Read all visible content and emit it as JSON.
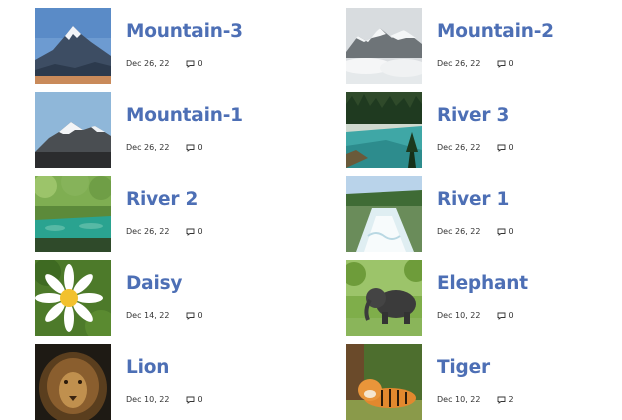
{
  "posts": [
    {
      "title": "Mountain-3",
      "date": "Dec 26, 22",
      "comments": "0",
      "thumb_icon": "mountain-peak-icon"
    },
    {
      "title": "Mountain-2",
      "date": "Dec 26, 22",
      "comments": "0",
      "thumb_icon": "misty-mountain-icon"
    },
    {
      "title": "Mountain-1",
      "date": "Dec 26, 22",
      "comments": "0",
      "thumb_icon": "snow-mountain-icon"
    },
    {
      "title": "River 3",
      "date": "Dec 26, 22",
      "comments": "0",
      "thumb_icon": "forest-river-icon"
    },
    {
      "title": "River 2",
      "date": "Dec 26, 22",
      "comments": "0",
      "thumb_icon": "jungle-river-icon"
    },
    {
      "title": "River 1",
      "date": "Dec 26, 22",
      "comments": "0",
      "thumb_icon": "rapids-river-icon"
    },
    {
      "title": "Daisy",
      "date": "Dec 14, 22",
      "comments": "0",
      "thumb_icon": "daisy-flower-icon"
    },
    {
      "title": "Elephant",
      "date": "Dec 10, 22",
      "comments": "0",
      "thumb_icon": "elephant-icon"
    },
    {
      "title": "Lion",
      "date": "Dec 10, 22",
      "comments": "0",
      "thumb_icon": "lion-icon"
    },
    {
      "title": "Tiger",
      "date": "Dec 10, 22",
      "comments": "2",
      "thumb_icon": "tiger-icon"
    }
  ],
  "colors": {
    "title": "#4d6fb5",
    "meta": "#333333"
  }
}
